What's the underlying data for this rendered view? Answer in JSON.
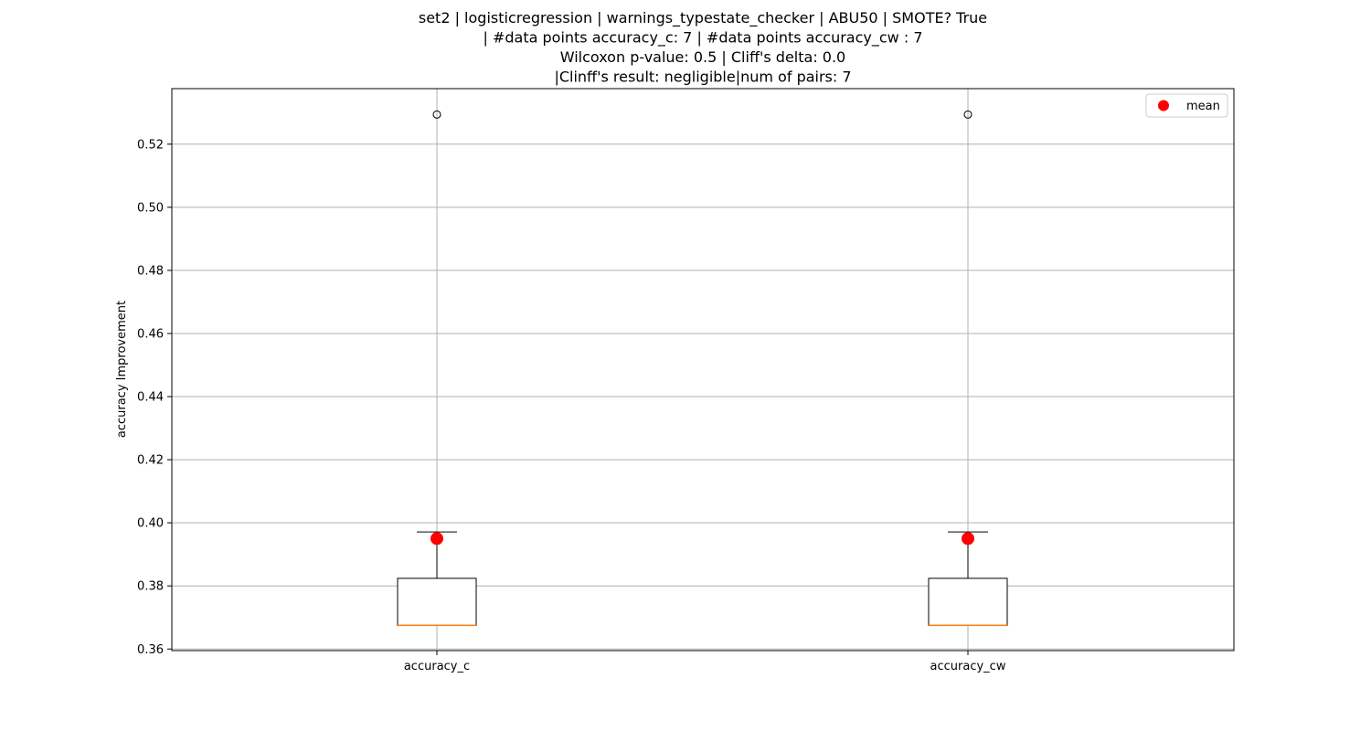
{
  "chart_data": {
    "type": "box",
    "title_lines": [
      "set2 | logisticregression | warnings_typestate_checker | ABU50 | SMOTE? True",
      "| #data points accuracy_c: 7 | #data points accuracy_cw : 7",
      "Wilcoxon p-value: 0.5 | Cliff's delta: 0.0",
      "|Clinff's result: negligible|num of pairs: 7"
    ],
    "xlabel": "",
    "ylabel": "accuracy Improvement",
    "ylim": [
      0.3595,
      0.5376
    ],
    "yticks": [
      0.36,
      0.38,
      0.4,
      0.42,
      0.44,
      0.46,
      0.48,
      0.5,
      0.52
    ],
    "ytick_labels": [
      "0.36",
      "0.38",
      "0.40",
      "0.42",
      "0.44",
      "0.46",
      "0.48",
      "0.50",
      "0.52"
    ],
    "grid": true,
    "legend": {
      "position": "top-right",
      "entries": [
        {
          "label": "mean",
          "color": "#ff0000"
        }
      ]
    },
    "categories": [
      "accuracy_c",
      "accuracy_cw"
    ],
    "boxes": [
      {
        "name": "accuracy_c",
        "whisker_low": 0.3675,
        "q1": 0.3675,
        "median": 0.3675,
        "q3": 0.3824,
        "whisker_high": 0.3971,
        "outliers": [
          0.5294
        ],
        "mean": 0.395
      },
      {
        "name": "accuracy_cw",
        "whisker_low": 0.3675,
        "q1": 0.3675,
        "median": 0.3675,
        "q3": 0.3824,
        "whisker_high": 0.3971,
        "outliers": [
          0.5294
        ],
        "mean": 0.395
      }
    ],
    "colors": {
      "box": "#000000",
      "median": "#ff7f0e",
      "mean": "#ff0000",
      "grid": "#b0b0b0",
      "outlier": "#000000"
    }
  }
}
